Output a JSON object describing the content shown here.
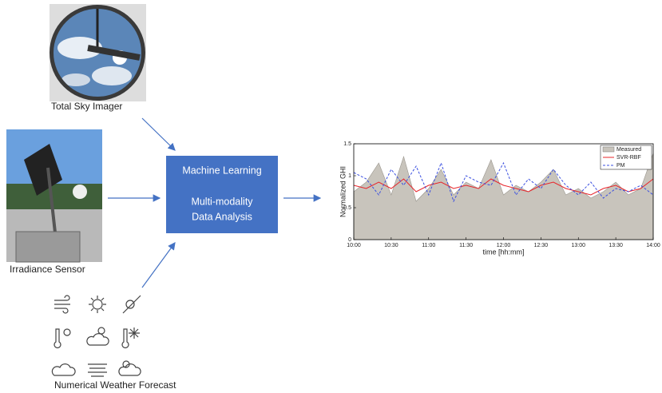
{
  "inputs": [
    {
      "label": "Total Sky Imager"
    },
    {
      "label": "Irradiance Sensor"
    },
    {
      "label": "Numerical Weather Forecast"
    }
  ],
  "model": {
    "lines": [
      "Machine Learning",
      "Multi-modality",
      "Data Analysis"
    ]
  },
  "chart_data": {
    "type": "line",
    "xlabel": "time [hh:mm]",
    "ylabel": "Normalized GHI",
    "x": [
      600,
      610,
      620,
      630,
      640,
      650,
      660,
      670,
      680,
      690,
      700,
      710,
      720,
      730,
      740,
      750,
      760,
      770,
      780,
      790,
      800,
      810,
      820,
      830,
      840
    ],
    "series": [
      {
        "name": "Measured",
        "color": "#c8c4bc",
        "style": "area",
        "values": [
          0.75,
          0.9,
          1.2,
          0.7,
          1.3,
          0.6,
          0.8,
          1.1,
          0.7,
          0.9,
          0.8,
          1.25,
          0.7,
          0.85,
          0.75,
          0.9,
          1.1,
          0.7,
          0.8,
          0.65,
          0.75,
          0.9,
          0.7,
          0.8,
          1.35
        ]
      },
      {
        "name": "SVR-RBF",
        "color": "#e8242a",
        "style": "solid",
        "values": [
          0.85,
          0.8,
          0.9,
          0.8,
          0.95,
          0.75,
          0.85,
          0.9,
          0.8,
          0.85,
          0.8,
          0.95,
          0.85,
          0.8,
          0.75,
          0.85,
          0.9,
          0.8,
          0.75,
          0.7,
          0.8,
          0.85,
          0.75,
          0.8,
          0.95
        ]
      },
      {
        "name": "PM",
        "color": "#3a4fe0",
        "style": "dashed",
        "values": [
          1.05,
          0.95,
          0.7,
          1.1,
          0.85,
          1.15,
          0.7,
          1.2,
          0.6,
          1.0,
          0.9,
          0.85,
          1.2,
          0.7,
          0.95,
          0.8,
          1.1,
          0.85,
          0.7,
          0.9,
          0.65,
          0.8,
          0.75,
          0.85,
          0.7
        ]
      }
    ],
    "xlim": [
      600,
      840
    ],
    "xticks": [
      {
        "value": 600,
        "label": "10:00"
      },
      {
        "value": 630,
        "label": "10:30"
      },
      {
        "value": 660,
        "label": "11:00"
      },
      {
        "value": 690,
        "label": "11:30"
      },
      {
        "value": 720,
        "label": "12:00"
      },
      {
        "value": 750,
        "label": "12:30"
      },
      {
        "value": 780,
        "label": "13:00"
      },
      {
        "value": 810,
        "label": "13:30"
      },
      {
        "value": 840,
        "label": "14:00"
      }
    ],
    "ylim": [
      0,
      1.5
    ],
    "yticks": [
      0,
      0.5,
      1,
      1.5
    ],
    "legend": "upper right"
  }
}
